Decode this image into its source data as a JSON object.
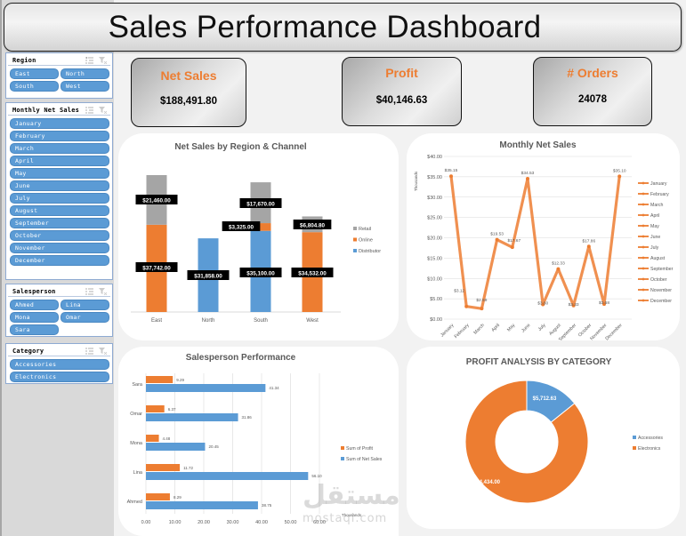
{
  "header": {
    "title": "Sales Performance Dashboard"
  },
  "slicers": {
    "region": {
      "title": "Region",
      "items": [
        "East",
        "North",
        "South",
        "West"
      ]
    },
    "month": {
      "title": "Monthly Net Sales",
      "items": [
        "January",
        "February",
        "March",
        "April",
        "May",
        "June",
        "July",
        "August",
        "September",
        "October",
        "November",
        "December"
      ]
    },
    "salesperson": {
      "title": "Salesperson",
      "items": [
        "Ahmed",
        "Lina",
        "Mona",
        "Omar",
        "Sara"
      ]
    },
    "category": {
      "title": "Category",
      "items": [
        "Accessories",
        "Electronics"
      ]
    }
  },
  "kpis": {
    "net_sales": {
      "label": "Net Sales",
      "value": "$188,491.80"
    },
    "profit": {
      "label": "Profit",
      "value": "$40,146.63"
    },
    "orders": {
      "label": "# Orders",
      "value": "24078"
    }
  },
  "colors": {
    "accent": "#ed7d31",
    "blue": "#5b9bd5",
    "gray": "#a5a5a5"
  },
  "chart_data": [
    {
      "type": "bar",
      "stacked": true,
      "title": "Net Sales by Region & Channel",
      "categories": [
        "East",
        "North",
        "South",
        "West"
      ],
      "series": [
        {
          "name": "Distributor",
          "color": "#5b9bd5",
          "values": [
            0,
            31858.0,
            35100.0,
            0
          ],
          "labels": [
            "",
            "$31,858.00",
            "$35,100.00",
            ""
          ]
        },
        {
          "name": "Online",
          "color": "#ed7d31",
          "values": [
            37742.0,
            0,
            3325.0,
            34532.0
          ],
          "labels": [
            "$37,742.00",
            "",
            "$3,325.00",
            "$34,532.00"
          ]
        },
        {
          "name": "Retail",
          "color": "#a5a5a5",
          "values": [
            21460.0,
            0,
            17670.0,
            6804.8
          ],
          "labels": [
            "$21,460.00",
            "",
            "$17,670.00",
            "$6,804.80"
          ]
        }
      ],
      "legend": [
        "Retail",
        "Online",
        "Distributor"
      ],
      "legend_position": "right"
    },
    {
      "type": "line",
      "title": "Monthly Net Sales",
      "ylabel": "Thousands",
      "categories": [
        "January",
        "February",
        "March",
        "April",
        "May",
        "June",
        "July",
        "August",
        "September",
        "October",
        "November",
        "December"
      ],
      "values": [
        35.15,
        3.12,
        2.59,
        19.53,
        17.67,
        34.53,
        3.6,
        12.33,
        3.33,
        17.86,
        3.68,
        35.1
      ],
      "labels": [
        "$35.15",
        "$3.12",
        "$2.59",
        "$19.53",
        "$17.67",
        "$34.53",
        "$3.60",
        "$12.33",
        "$3.33",
        "$17.86",
        "$3.68",
        "$35.10"
      ],
      "yticks": [
        "$0.00",
        "$5.00",
        "$10.00",
        "$15.00",
        "$20.00",
        "$25.00",
        "$30.00",
        "$35.00",
        "$40.00"
      ],
      "ylim": [
        0,
        40
      ],
      "grid": true,
      "legend": [
        "January",
        "February",
        "March",
        "April",
        "May",
        "June",
        "July",
        "August",
        "September",
        "October",
        "November",
        "December"
      ],
      "legend_position": "right"
    },
    {
      "type": "bar",
      "orientation": "horizontal",
      "title": "Salesperson Performance",
      "xlabel": "Thousands",
      "categories": [
        "Sara",
        "Omar",
        "Mona",
        "Lina",
        "Ahmed"
      ],
      "series": [
        {
          "name": "Sum of Profit",
          "color": "#ed7d31",
          "values": [
            9.29,
            6.37,
            4.48,
            11.72,
            8.29
          ]
        },
        {
          "name": "Sum of Net Sales",
          "color": "#5b9bd5",
          "values": [
            41.34,
            31.86,
            20.45,
            56.1,
            38.75
          ]
        }
      ],
      "xticks": [
        "0.00",
        "10.00",
        "20.00",
        "30.00",
        "40.00",
        "50.00",
        "60.00"
      ],
      "xlim": [
        0,
        60
      ],
      "legend_position": "right"
    },
    {
      "type": "pie",
      "donut": true,
      "title": "PROFIT ANALYSIS BY CATEGORY",
      "categories": [
        "Accessories",
        "Electronics"
      ],
      "values": [
        5712.63,
        34434.0
      ],
      "labels": [
        "$5,712.63",
        "$34,434.00"
      ],
      "colors": [
        "#5b9bd5",
        "#ed7d31"
      ],
      "legend_position": "right"
    }
  ],
  "watermark": {
    "arabic": "مستقل",
    "latin": "mostaql.com"
  }
}
